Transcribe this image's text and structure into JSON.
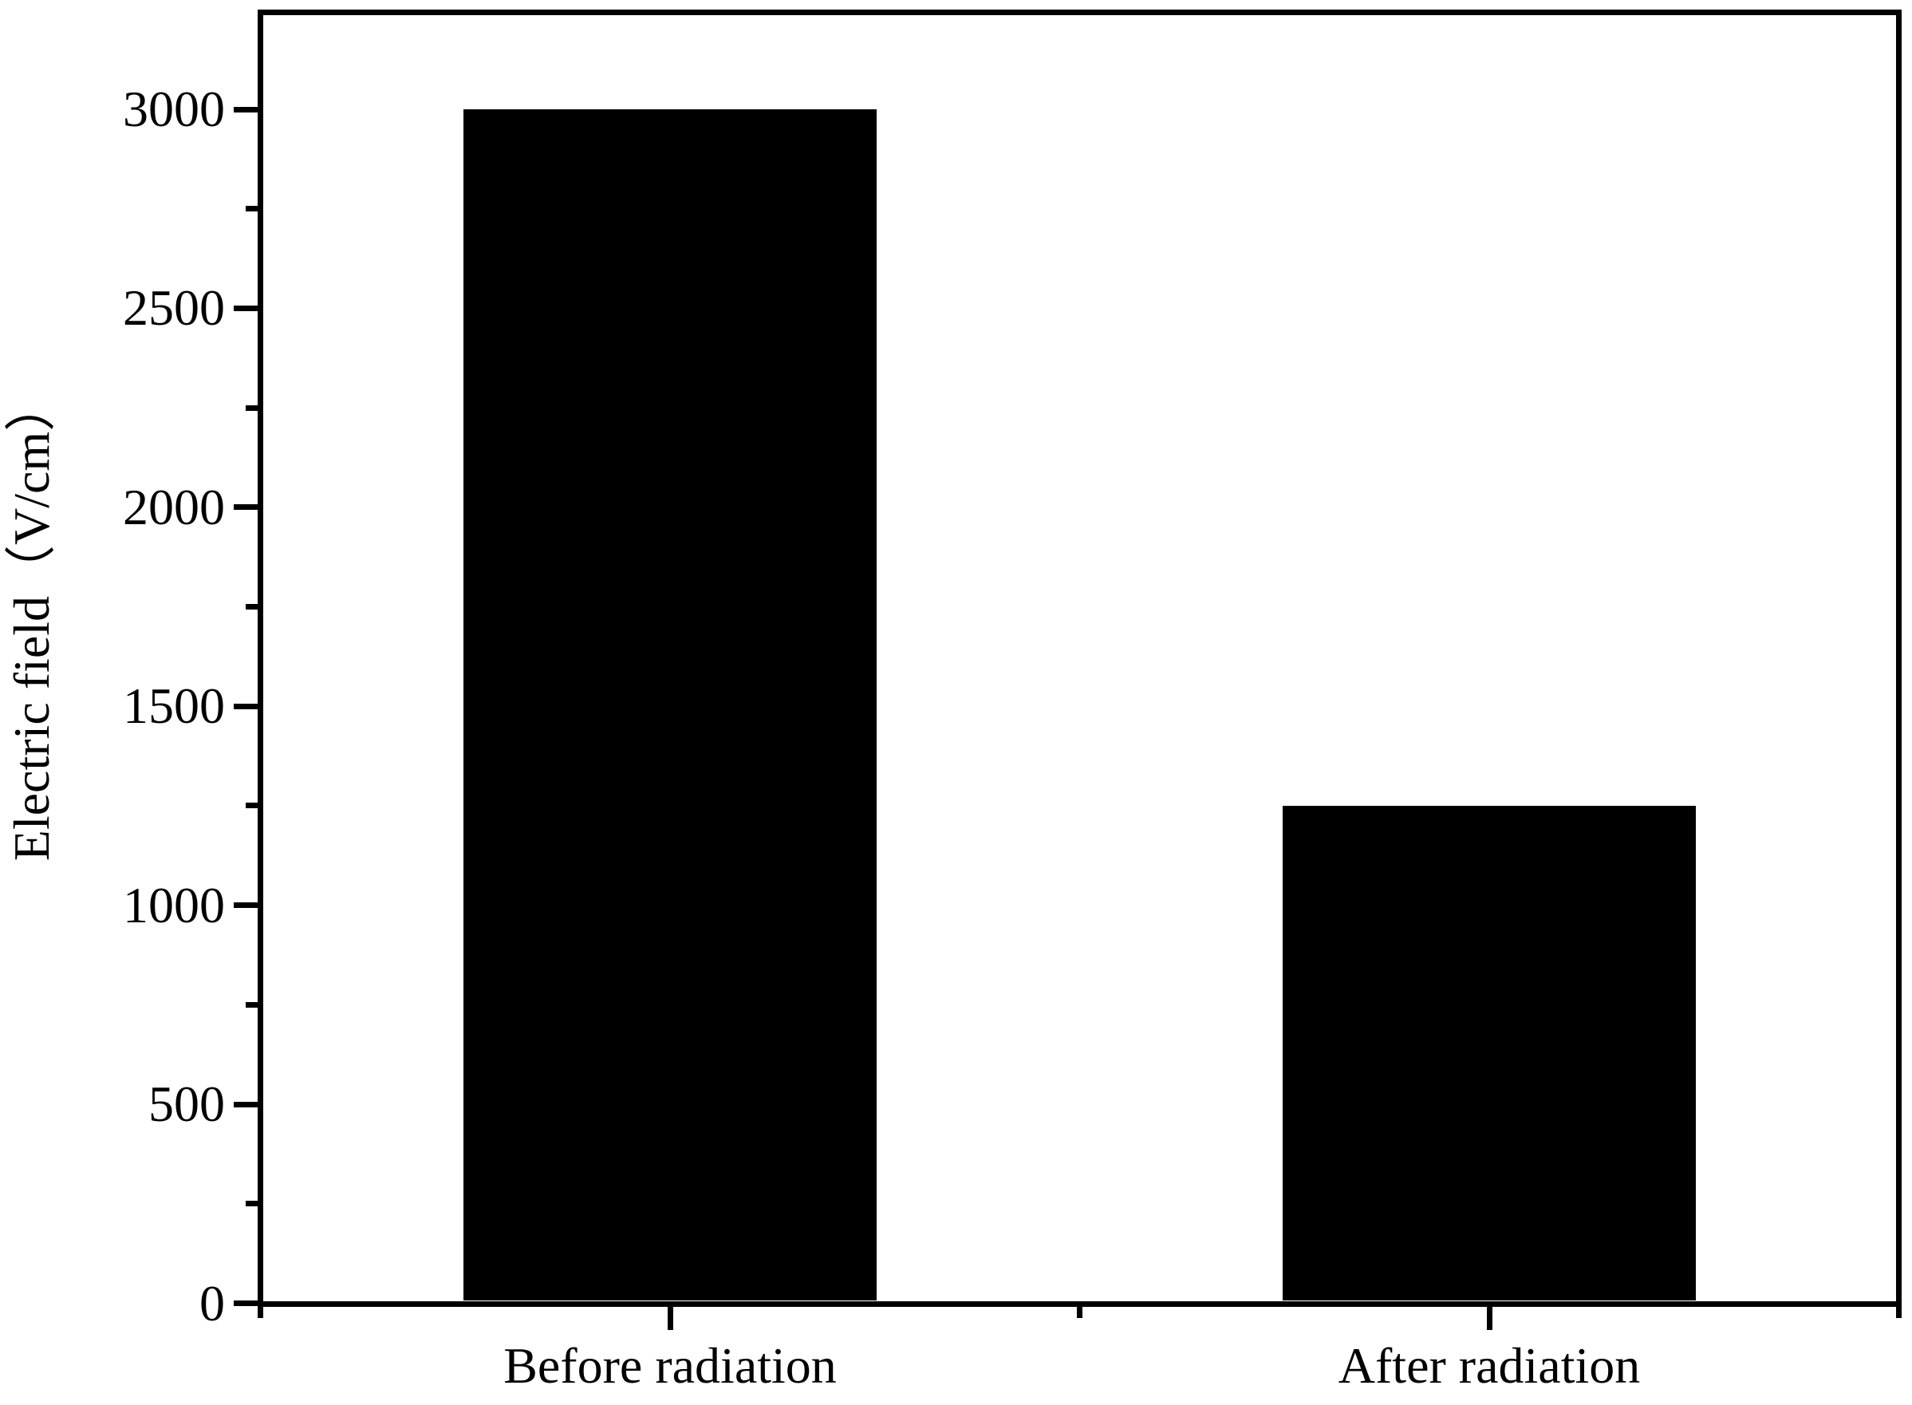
{
  "chart_data": {
    "type": "bar",
    "categories": [
      "Before radiation",
      "After radiation"
    ],
    "values": [
      3000,
      1250
    ],
    "title": "",
    "xlabel": "",
    "ylabel": "Electric field（V/cm）",
    "ylim": [
      0,
      3250
    ],
    "yticks_major": [
      0,
      500,
      1000,
      1500,
      2000,
      2500,
      3000
    ],
    "yticks_minor": [
      250,
      750,
      1250,
      1750,
      2250,
      2750
    ],
    "ytick_labels": [
      "0",
      "500",
      "1000",
      "1500",
      "2000",
      "2500",
      "3000"
    ],
    "grid": false,
    "legend": null,
    "bar_color": "#000000",
    "axis_color": "#000000",
    "background_color": "#ffffff"
  }
}
